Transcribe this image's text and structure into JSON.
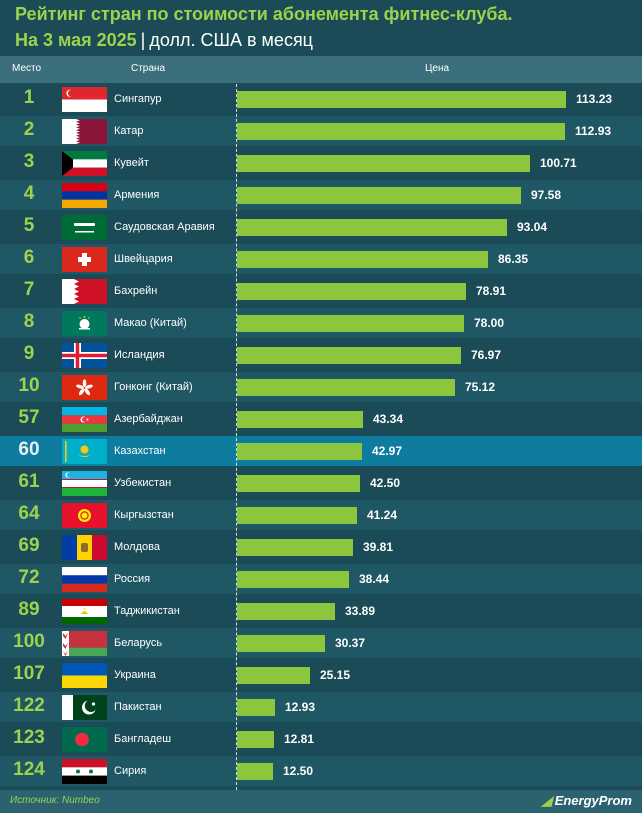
{
  "header": {
    "title": "Рейтинг стран по стоимости абонемента фитнес-клуба.",
    "subtitle_date": "На 3 мая 2025",
    "subtitle_sep": "|",
    "subtitle_unit": "долл. США в месяц"
  },
  "columns": {
    "place": "Место",
    "country": "Страна",
    "price": "Цена"
  },
  "chart_data": {
    "type": "bar",
    "orientation": "horizontal",
    "xlim": [
      0,
      113.23
    ],
    "grid": false,
    "highlight": "Казахстан",
    "rows": [
      {
        "rank": "1",
        "country": "Сингапур",
        "value": 113.23,
        "label": "113.23",
        "flag": "singapore"
      },
      {
        "rank": "2",
        "country": "Катар",
        "value": 112.93,
        "label": "112.93",
        "flag": "qatar"
      },
      {
        "rank": "3",
        "country": "Кувейт",
        "value": 100.71,
        "label": "100.71",
        "flag": "kuwait"
      },
      {
        "rank": "4",
        "country": "Армения",
        "value": 97.58,
        "label": "97.58",
        "flag": "armenia"
      },
      {
        "rank": "5",
        "country": "Саудовская Аравия",
        "value": 93.04,
        "label": "93.04",
        "flag": "saudi-arabia"
      },
      {
        "rank": "6",
        "country": "Швейцария",
        "value": 86.35,
        "label": "86.35",
        "flag": "switzerland"
      },
      {
        "rank": "7",
        "country": "Бахрейн",
        "value": 78.91,
        "label": "78.91",
        "flag": "bahrain"
      },
      {
        "rank": "8",
        "country": "Макао (Китай)",
        "value": 78.0,
        "label": "78.00",
        "flag": "macau"
      },
      {
        "rank": "9",
        "country": "Исландия",
        "value": 76.97,
        "label": "76.97",
        "flag": "iceland"
      },
      {
        "rank": "10",
        "country": "Гонконг (Китай)",
        "value": 75.12,
        "label": "75.12",
        "flag": "hong-kong"
      },
      {
        "rank": "57",
        "country": "Азербайджан",
        "value": 43.34,
        "label": "43.34",
        "flag": "azerbaijan"
      },
      {
        "rank": "60",
        "country": "Казахстан",
        "value": 42.97,
        "label": "42.97",
        "flag": "kazakhstan"
      },
      {
        "rank": "61",
        "country": "Узбекистан",
        "value": 42.5,
        "label": "42.50",
        "flag": "uzbekistan"
      },
      {
        "rank": "64",
        "country": "Кыргызстан",
        "value": 41.24,
        "label": "41.24",
        "flag": "kyrgyzstan"
      },
      {
        "rank": "69",
        "country": "Молдова",
        "value": 39.81,
        "label": "39.81",
        "flag": "moldova"
      },
      {
        "rank": "72",
        "country": "Россия",
        "value": 38.44,
        "label": "38.44",
        "flag": "russia"
      },
      {
        "rank": "89",
        "country": "Таджикистан",
        "value": 33.89,
        "label": "33.89",
        "flag": "tajikistan"
      },
      {
        "rank": "100",
        "country": "Беларусь",
        "value": 30.37,
        "label": "30.37",
        "flag": "belarus"
      },
      {
        "rank": "107",
        "country": "Украина",
        "value": 25.15,
        "label": "25.15",
        "flag": "ukraine"
      },
      {
        "rank": "122",
        "country": "Пакистан",
        "value": 12.93,
        "label": "12.93",
        "flag": "pakistan"
      },
      {
        "rank": "123",
        "country": "Бангладеш",
        "value": 12.81,
        "label": "12.81",
        "flag": "bangladesh"
      },
      {
        "rank": "124",
        "country": "Сирия",
        "value": 12.5,
        "label": "12.50",
        "flag": "syria"
      }
    ]
  },
  "colors": {
    "background": "#1a4b57",
    "accent_green": "#9bd34e",
    "bar": "#8cc63f",
    "highlight_row": "#0d7c9e"
  },
  "footer": {
    "source": "Источник: Numbeo",
    "logo": "EnergyProm"
  }
}
